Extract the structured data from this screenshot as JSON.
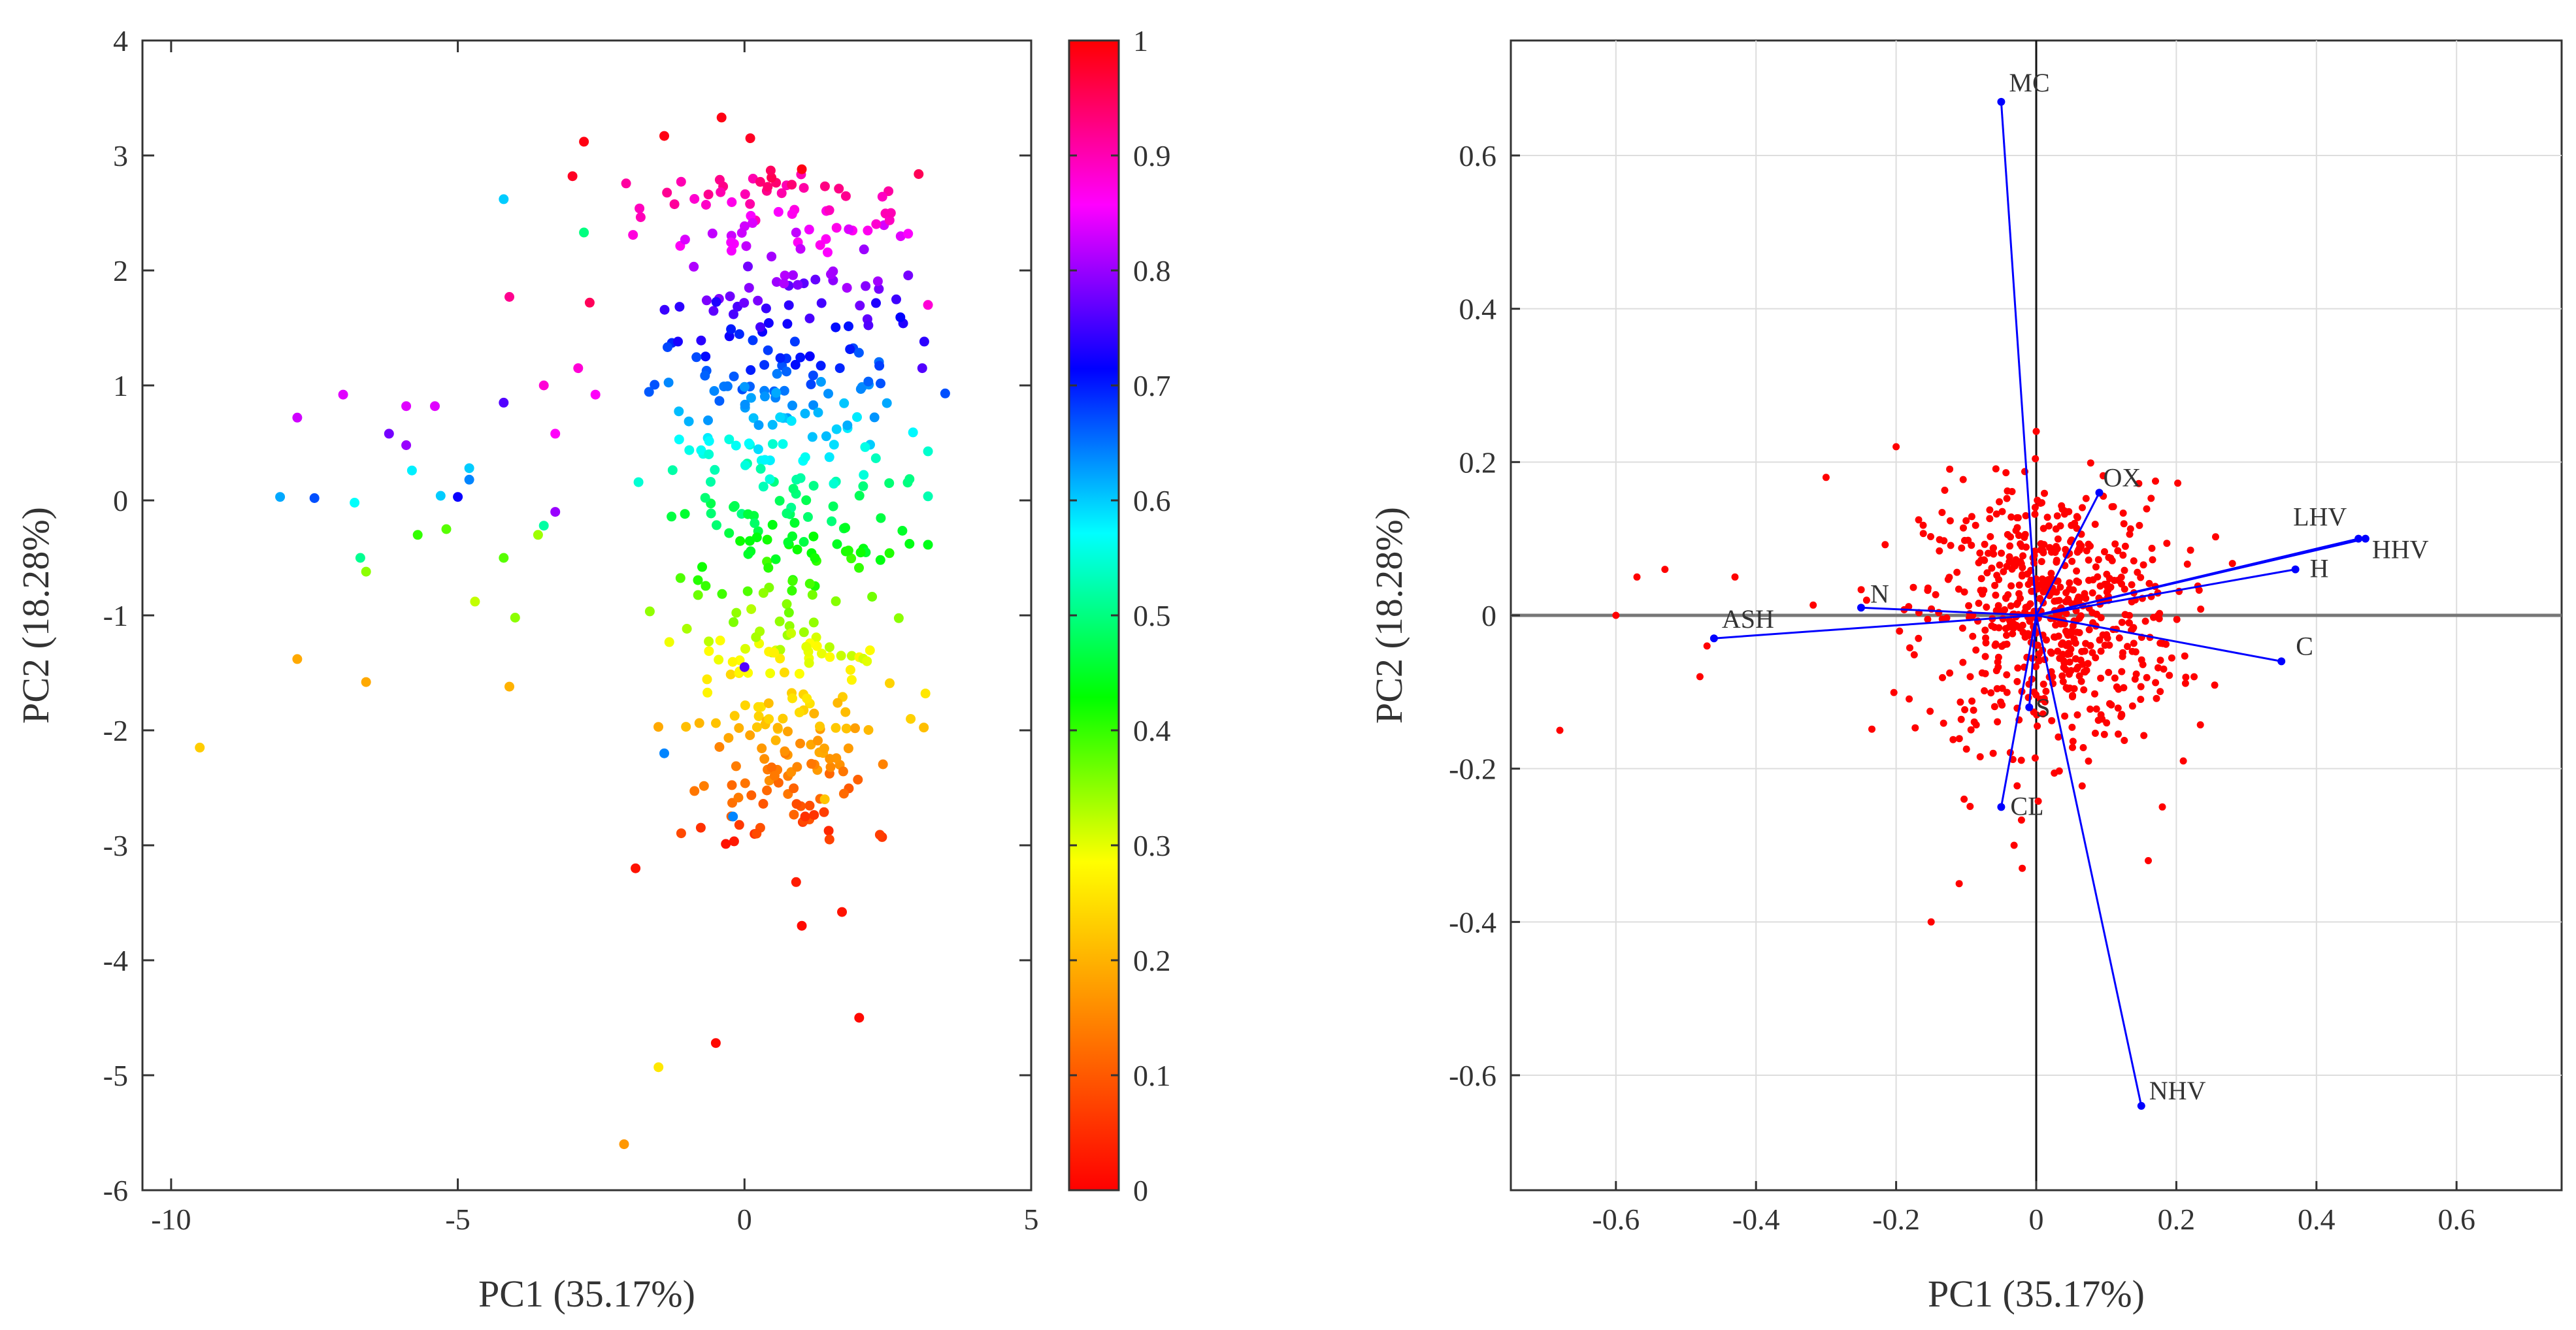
{
  "figure": {
    "left_panel": "PCA score plot coloured by normalised value",
    "right_panel": "PCA biplot with loading vectors"
  },
  "chart_data": [
    {
      "type": "scatter",
      "title": "",
      "xlabel": "PC1 (35.17%)",
      "ylabel": "PC2 (18.28%)",
      "xlim": [
        -10.5,
        5
      ],
      "ylim": [
        -6,
        4
      ],
      "xticks": [
        -10,
        -5,
        0,
        5
      ],
      "yticks": [
        -6,
        -5,
        -4,
        -3,
        -2,
        -1,
        0,
        1,
        2,
        3,
        4
      ],
      "xtick_labels": [
        "-10",
        "-5",
        "0",
        "5"
      ],
      "ytick_labels": [
        "-6",
        "-5",
        "-4",
        "-3",
        "-2",
        "-1",
        "0",
        "1",
        "2",
        "3",
        "4"
      ],
      "grid": false,
      "colorbar": {
        "range": [
          0,
          1
        ],
        "ticks": [
          0,
          0.1,
          0.2,
          0.3,
          0.4,
          0.5,
          0.6,
          0.7,
          0.8,
          0.9,
          1
        ],
        "tick_labels": [
          "0",
          "0.1",
          "0.2",
          "0.3",
          "0.4",
          "0.5",
          "0.6",
          "0.7",
          "0.8",
          "0.9",
          "1"
        ],
        "colormap": [
          "#ff0000",
          "#ff7f00",
          "#ffff00",
          "#00ff00",
          "#00ffff",
          "#0000ff",
          "#ff00ff",
          "#ff0000"
        ]
      },
      "points": [
        {
          "x": -9.5,
          "y": -2.15,
          "c": 0.23
        },
        {
          "x": -8.1,
          "y": 0.03,
          "c": 0.62
        },
        {
          "x": -7.5,
          "y": 0.02,
          "c": 0.67
        },
        {
          "x": -7.8,
          "y": 0.72,
          "c": 0.83
        },
        {
          "x": -7.8,
          "y": -1.38,
          "c": 0.19
        },
        {
          "x": -7.0,
          "y": 0.92,
          "c": 0.84
        },
        {
          "x": -6.8,
          "y": -0.02,
          "c": 0.57
        },
        {
          "x": -6.7,
          "y": -0.5,
          "c": 0.51
        },
        {
          "x": -6.6,
          "y": -0.62,
          "c": 0.35
        },
        {
          "x": -6.6,
          "y": -1.58,
          "c": 0.19
        },
        {
          "x": -6.2,
          "y": 0.58,
          "c": 0.78
        },
        {
          "x": -5.9,
          "y": 0.82,
          "c": 0.84
        },
        {
          "x": -5.9,
          "y": 0.48,
          "c": 0.8
        },
        {
          "x": -5.8,
          "y": 0.26,
          "c": 0.58
        },
        {
          "x": -5.7,
          "y": -0.3,
          "c": 0.4
        },
        {
          "x": -5.4,
          "y": 0.82,
          "c": 0.84
        },
        {
          "x": -5.3,
          "y": 0.04,
          "c": 0.6
        },
        {
          "x": -5.2,
          "y": -0.25,
          "c": 0.38
        },
        {
          "x": -5.0,
          "y": 0.03,
          "c": 0.72
        },
        {
          "x": -4.8,
          "y": 0.28,
          "c": 0.6
        },
        {
          "x": -4.8,
          "y": 0.18,
          "c": 0.64
        },
        {
          "x": -4.7,
          "y": -0.88,
          "c": 0.32
        },
        {
          "x": -4.2,
          "y": 2.62,
          "c": 0.6
        },
        {
          "x": -4.2,
          "y": 0.85,
          "c": 0.76
        },
        {
          "x": -4.2,
          "y": -0.5,
          "c": 0.38
        },
        {
          "x": -4.1,
          "y": -1.62,
          "c": 0.2
        },
        {
          "x": -4.1,
          "y": 1.77,
          "c": 0.92
        },
        {
          "x": -4.0,
          "y": -1.02,
          "c": 0.35
        },
        {
          "x": -3.6,
          "y": -0.3,
          "c": 0.34
        },
        {
          "x": -3.5,
          "y": 1.0,
          "c": 0.88
        },
        {
          "x": -3.5,
          "y": -0.22,
          "c": 0.52
        },
        {
          "x": -3.3,
          "y": 0.58,
          "c": 0.86
        },
        {
          "x": -3.3,
          "y": -0.1,
          "c": 0.8
        },
        {
          "x": -3.0,
          "y": 2.82,
          "c": 0.98
        },
        {
          "x": -2.9,
          "y": 1.15,
          "c": 0.88
        },
        {
          "x": -2.8,
          "y": 2.33,
          "c": 0.5
        },
        {
          "x": -2.8,
          "y": 3.12,
          "c": 0.99
        },
        {
          "x": -2.7,
          "y": 1.72,
          "c": 0.95
        },
        {
          "x": -2.6,
          "y": 0.92,
          "c": 0.86
        },
        {
          "x": -2.1,
          "y": -5.6,
          "c": 0.17
        },
        {
          "x": -1.9,
          "y": -3.2,
          "c": 0.02
        },
        {
          "x": -1.5,
          "y": -4.93,
          "c": 0.26
        },
        {
          "x": -1.4,
          "y": -2.2,
          "c": 0.64
        },
        {
          "x": -1.4,
          "y": 3.17,
          "c": 0.99
        },
        {
          "x": -0.5,
          "y": -4.72,
          "c": 0.01
        },
        {
          "x": -0.4,
          "y": 3.33,
          "c": 0.99
        },
        {
          "x": -0.2,
          "y": -2.75,
          "c": 0.64
        },
        {
          "x": 0.0,
          "y": -1.45,
          "c": 0.76
        },
        {
          "x": 0.1,
          "y": 3.15,
          "c": 0.98
        },
        {
          "x": 0.9,
          "y": -3.32,
          "c": 0.03
        },
        {
          "x": 1.0,
          "y": 2.88,
          "c": 0.99
        },
        {
          "x": 1.0,
          "y": -3.7,
          "c": 0.01
        },
        {
          "x": 1.4,
          "y": -2.6,
          "c": 0.22
        },
        {
          "x": 1.7,
          "y": -3.58,
          "c": 0.02
        },
        {
          "x": 2.0,
          "y": -4.5,
          "c": 0.01
        },
        {
          "x": 3.2,
          "y": 1.7,
          "c": 0.88
        },
        {
          "x": 3.1,
          "y": 1.15,
          "c": 0.76
        },
        {
          "x": 3.5,
          "y": 0.93,
          "c": 0.67
        }
      ],
      "generated_cloud": {
        "count": 500,
        "center_x": 0.7,
        "spread_x": 1.6,
        "y_min": -3.0,
        "y_max": 2.9,
        "note": "bulk of points between PC1 -3 and 3, colour rises with PC2"
      }
    },
    {
      "type": "scatter",
      "title": "",
      "xlabel": "PC1 (35.17%)",
      "ylabel": "PC2 (18.28%)",
      "xlim": [
        -0.75,
        0.75
      ],
      "ylim": [
        -0.75,
        0.75
      ],
      "xticks": [
        -0.6,
        -0.4,
        -0.2,
        0,
        0.2,
        0.4,
        0.6
      ],
      "yticks": [
        -0.6,
        -0.4,
        -0.2,
        0,
        0.2,
        0.4,
        0.6
      ],
      "xtick_labels": [
        "-0.6",
        "-0.4",
        "-0.2",
        "0",
        "0.2",
        "0.4",
        "0.6"
      ],
      "ytick_labels": [
        "-0.6",
        "-0.4",
        "-0.2",
        "0",
        "0.2",
        "0.4",
        "0.6"
      ],
      "grid": true,
      "marker_color": "#ff0000",
      "vector_color": "#0000ff",
      "loadings": [
        {
          "label": "MC",
          "x": -0.05,
          "y": 0.67
        },
        {
          "label": "OX",
          "x": 0.09,
          "y": 0.16
        },
        {
          "label": "LHV",
          "x": 0.46,
          "y": 0.1
        },
        {
          "label": "HHV",
          "x": 0.47,
          "y": 0.1
        },
        {
          "label": "H",
          "x": 0.37,
          "y": 0.06
        },
        {
          "label": "C",
          "x": 0.35,
          "y": -0.06
        },
        {
          "label": "N",
          "x": -0.25,
          "y": 0.01
        },
        {
          "label": "ASH",
          "x": -0.46,
          "y": -0.03
        },
        {
          "label": "S",
          "x": -0.01,
          "y": -0.12
        },
        {
          "label": "CL",
          "x": -0.05,
          "y": -0.25
        },
        {
          "label": "NHV",
          "x": 0.15,
          "y": -0.64
        }
      ],
      "points": [
        {
          "x": -0.68,
          "y": -0.15
        },
        {
          "x": -0.6,
          "y": 0.0
        },
        {
          "x": -0.57,
          "y": 0.05
        },
        {
          "x": -0.53,
          "y": 0.06
        },
        {
          "x": -0.48,
          "y": -0.08
        },
        {
          "x": -0.47,
          "y": -0.04
        },
        {
          "x": -0.43,
          "y": 0.05
        },
        {
          "x": -0.3,
          "y": 0.18
        },
        {
          "x": -0.2,
          "y": 0.22
        },
        {
          "x": -0.15,
          "y": -0.4
        },
        {
          "x": -0.11,
          "y": -0.35
        },
        {
          "x": -0.02,
          "y": -0.33
        },
        {
          "x": 0.0,
          "y": 0.24
        },
        {
          "x": 0.16,
          "y": -0.32
        },
        {
          "x": 0.18,
          "y": -0.25
        },
        {
          "x": 0.21,
          "y": -0.19
        }
      ],
      "generated_cloud": {
        "count": 650,
        "center_x": 0.02,
        "spread_x": 0.09,
        "center_y": 0.0,
        "spread_y": 0.085
      }
    }
  ]
}
